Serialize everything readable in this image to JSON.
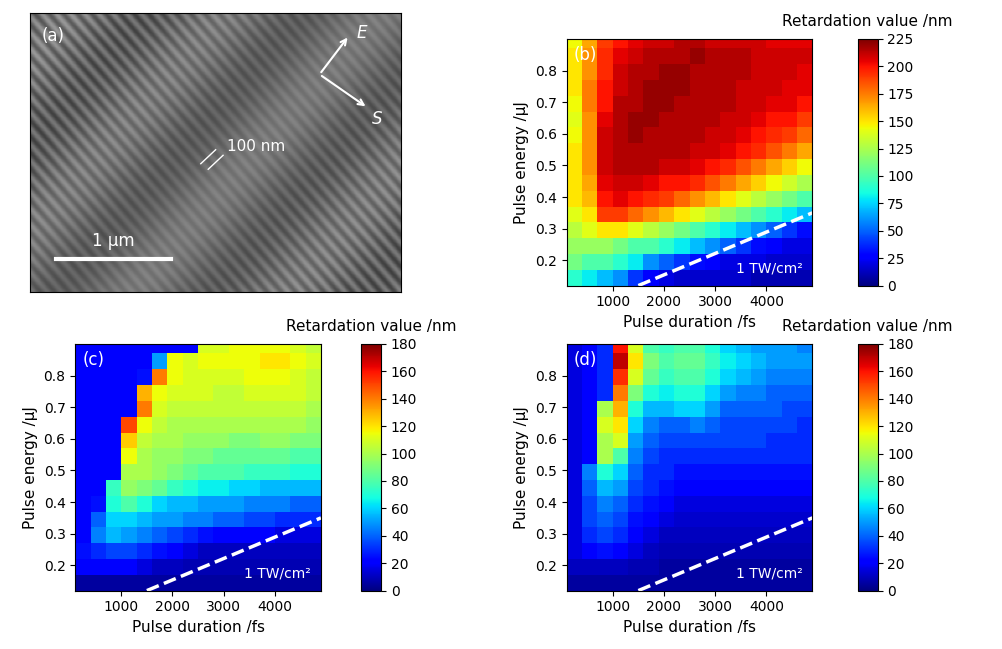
{
  "panel_a": {
    "label": "(a)",
    "polarization_label": "E",
    "scan_label": "S",
    "period_label": "100 nm",
    "scale_bar_label": "1 μm"
  },
  "chart_data": [
    {
      "type": "heatmap",
      "label": "(b)",
      "x_label": "Pulse duration /fs",
      "y_label": "Pulse energy /μJ",
      "xlim": [
        100,
        4900
      ],
      "ylim": [
        0.12,
        0.9
      ],
      "xticks": [
        1000,
        2000,
        3000,
        4000
      ],
      "yticks": [
        0.2,
        0.3,
        0.4,
        0.5,
        0.6,
        0.7,
        0.8
      ],
      "x_edges": [
        100,
        400,
        700,
        1000,
        1300,
        1600,
        1900,
        2200,
        2500,
        2800,
        3100,
        3400,
        3700,
        4000,
        4300,
        4600,
        4900
      ],
      "y_edges": [
        0.12,
        0.17,
        0.22,
        0.27,
        0.32,
        0.37,
        0.42,
        0.47,
        0.52,
        0.57,
        0.62,
        0.67,
        0.72,
        0.77,
        0.82,
        0.87,
        0.92
      ],
      "cells": [
        [
          90,
          80,
          70,
          60,
          40,
          25,
          20,
          15,
          15,
          15,
          15,
          15,
          10,
          10,
          10,
          10
        ],
        [
          110,
          100,
          100,
          90,
          80,
          60,
          50,
          40,
          30,
          25,
          20,
          20,
          20,
          15,
          15,
          15
        ],
        [
          120,
          120,
          120,
          110,
          100,
          100,
          90,
          80,
          70,
          60,
          50,
          40,
          30,
          25,
          20,
          20
        ],
        [
          130,
          140,
          150,
          150,
          140,
          130,
          120,
          110,
          100,
          90,
          80,
          70,
          60,
          50,
          40,
          30
        ],
        [
          140,
          150,
          190,
          190,
          180,
          170,
          160,
          150,
          140,
          130,
          120,
          110,
          100,
          90,
          80,
          70
        ],
        [
          150,
          160,
          200,
          205,
          200,
          195,
          190,
          180,
          170,
          160,
          150,
          140,
          130,
          120,
          110,
          100
        ],
        [
          150,
          165,
          205,
          210,
          210,
          205,
          200,
          200,
          195,
          185,
          175,
          165,
          155,
          145,
          135,
          125
        ],
        [
          150,
          170,
          210,
          215,
          215,
          215,
          210,
          210,
          205,
          200,
          195,
          185,
          175,
          165,
          155,
          145
        ],
        [
          150,
          170,
          210,
          215,
          215,
          215,
          215,
          215,
          210,
          210,
          205,
          200,
          195,
          185,
          175,
          165
        ],
        [
          145,
          170,
          210,
          215,
          220,
          215,
          215,
          215,
          215,
          210,
          210,
          205,
          200,
          195,
          190,
          180
        ],
        [
          140,
          170,
          205,
          215,
          220,
          220,
          215,
          215,
          215,
          215,
          210,
          210,
          205,
          200,
          200,
          190
        ],
        [
          145,
          175,
          200,
          215,
          215,
          220,
          220,
          215,
          215,
          215,
          215,
          210,
          210,
          205,
          205,
          200
        ],
        [
          150,
          175,
          200,
          210,
          215,
          220,
          220,
          220,
          215,
          215,
          215,
          210,
          210,
          210,
          205,
          205
        ],
        [
          150,
          170,
          195,
          210,
          215,
          215,
          220,
          220,
          215,
          215,
          215,
          215,
          210,
          210,
          210,
          205
        ],
        [
          150,
          170,
          195,
          205,
          210,
          215,
          215,
          215,
          220,
          215,
          215,
          215,
          210,
          210,
          210,
          210
        ],
        [
          145,
          165,
          190,
          200,
          205,
          210,
          210,
          215,
          215,
          210,
          210,
          210,
          210,
          205,
          205,
          205
        ]
      ],
      "colorbar": {
        "title": "Retardation value /nm",
        "range": [
          0,
          225
        ],
        "ticks": [
          0,
          25,
          50,
          75,
          100,
          125,
          150,
          175,
          200,
          225
        ]
      },
      "threshold_line": {
        "x": [
          1500,
          4900
        ],
        "y": [
          0.12,
          0.35
        ],
        "label": "1 TW/cm²"
      }
    },
    {
      "type": "heatmap",
      "label": "(c)",
      "x_label": "Pulse duration /fs",
      "y_label": "Pulse energy /μJ",
      "xlim": [
        100,
        4900
      ],
      "ylim": [
        0.12,
        0.9
      ],
      "xticks": [
        1000,
        2000,
        3000,
        4000
      ],
      "yticks": [
        0.2,
        0.3,
        0.4,
        0.5,
        0.6,
        0.7,
        0.8
      ],
      "x_edges": [
        100,
        400,
        700,
        1000,
        1300,
        1600,
        1900,
        2200,
        2500,
        2800,
        3100,
        3400,
        3700,
        4000,
        4300,
        4600,
        4900
      ],
      "y_edges": [
        0.12,
        0.17,
        0.22,
        0.27,
        0.32,
        0.37,
        0.42,
        0.47,
        0.52,
        0.57,
        0.62,
        0.67,
        0.72,
        0.77,
        0.82,
        0.87,
        0.92
      ],
      "cells": [
        [
          5,
          5,
          5,
          5,
          5,
          5,
          5,
          5,
          5,
          5,
          5,
          5,
          5,
          5,
          5,
          5
        ],
        [
          20,
          20,
          20,
          20,
          15,
          10,
          10,
          8,
          8,
          8,
          8,
          8,
          8,
          8,
          8,
          8
        ],
        [
          25,
          30,
          35,
          35,
          30,
          25,
          20,
          15,
          10,
          10,
          10,
          10,
          10,
          10,
          10,
          10
        ],
        [
          20,
          45,
          55,
          50,
          45,
          40,
          35,
          30,
          25,
          20,
          20,
          20,
          20,
          15,
          15,
          15
        ],
        [
          20,
          40,
          60,
          60,
          55,
          50,
          50,
          45,
          45,
          40,
          40,
          35,
          35,
          30,
          30,
          30
        ],
        [
          20,
          25,
          70,
          80,
          70,
          60,
          55,
          55,
          50,
          50,
          50,
          45,
          45,
          45,
          40,
          40
        ],
        [
          20,
          20,
          75,
          95,
          90,
          85,
          75,
          70,
          65,
          65,
          60,
          60,
          55,
          55,
          55,
          55
        ],
        [
          20,
          20,
          20,
          100,
          100,
          95,
          90,
          85,
          80,
          80,
          80,
          75,
          75,
          75,
          70,
          70
        ],
        [
          20,
          20,
          20,
          115,
          100,
          95,
          95,
          90,
          90,
          85,
          85,
          85,
          85,
          85,
          80,
          80
        ],
        [
          20,
          20,
          20,
          125,
          105,
          100,
          100,
          95,
          95,
          95,
          90,
          90,
          95,
          95,
          90,
          90
        ],
        [
          20,
          20,
          20,
          150,
          115,
          105,
          100,
          100,
          100,
          100,
          100,
          100,
          100,
          100,
          100,
          95
        ],
        [
          20,
          20,
          20,
          20,
          140,
          110,
          105,
          105,
          105,
          105,
          105,
          105,
          105,
          105,
          105,
          100
        ],
        [
          20,
          20,
          20,
          20,
          130,
          115,
          110,
          110,
          110,
          105,
          105,
          110,
          110,
          110,
          110,
          105
        ],
        [
          20,
          20,
          20,
          20,
          25,
          140,
          115,
          110,
          110,
          110,
          110,
          115,
          115,
          115,
          110,
          105
        ],
        [
          20,
          20,
          20,
          20,
          20,
          50,
          115,
          110,
          115,
          115,
          115,
          115,
          120,
          120,
          115,
          110
        ],
        [
          20,
          20,
          20,
          20,
          20,
          20,
          20,
          20,
          110,
          110,
          115,
          115,
          115,
          115,
          110,
          105
        ]
      ],
      "colorbar": {
        "title": "Retardation value /nm",
        "range": [
          0,
          180
        ],
        "ticks": [
          0,
          20,
          40,
          60,
          80,
          100,
          120,
          140,
          160,
          180
        ]
      },
      "threshold_line": {
        "x": [
          1500,
          4900
        ],
        "y": [
          0.12,
          0.35
        ],
        "label": "1 TW/cm²"
      }
    },
    {
      "type": "heatmap",
      "label": "(d)",
      "x_label": "Pulse duration /fs",
      "y_label": "Pulse energy /μJ",
      "xlim": [
        100,
        4900
      ],
      "ylim": [
        0.12,
        0.9
      ],
      "xticks": [
        1000,
        2000,
        3000,
        4000
      ],
      "yticks": [
        0.2,
        0.3,
        0.4,
        0.5,
        0.6,
        0.7,
        0.8
      ],
      "x_edges": [
        100,
        400,
        700,
        1000,
        1300,
        1600,
        1900,
        2200,
        2500,
        2800,
        3100,
        3400,
        3700,
        4000,
        4300,
        4600,
        4900
      ],
      "y_edges": [
        0.12,
        0.17,
        0.22,
        0.27,
        0.32,
        0.37,
        0.42,
        0.47,
        0.52,
        0.57,
        0.62,
        0.67,
        0.72,
        0.77,
        0.82,
        0.87,
        0.92
      ],
      "cells": [
        [
          5,
          5,
          5,
          5,
          5,
          5,
          5,
          5,
          5,
          5,
          5,
          5,
          5,
          5,
          5,
          5
        ],
        [
          10,
          10,
          10,
          10,
          8,
          8,
          5,
          5,
          5,
          5,
          5,
          5,
          5,
          5,
          5,
          5
        ],
        [
          15,
          20,
          25,
          20,
          15,
          10,
          8,
          8,
          8,
          8,
          8,
          8,
          8,
          8,
          8,
          8
        ],
        [
          15,
          30,
          35,
          30,
          20,
          15,
          10,
          10,
          10,
          10,
          10,
          10,
          10,
          10,
          10,
          10
        ],
        [
          15,
          35,
          40,
          35,
          25,
          20,
          15,
          12,
          12,
          12,
          12,
          12,
          12,
          12,
          12,
          12
        ],
        [
          15,
          35,
          45,
          40,
          30,
          25,
          20,
          15,
          15,
          15,
          15,
          15,
          15,
          15,
          15,
          15
        ],
        [
          15,
          40,
          55,
          50,
          35,
          30,
          25,
          20,
          20,
          20,
          20,
          20,
          20,
          20,
          20,
          20
        ],
        [
          15,
          45,
          70,
          60,
          40,
          30,
          30,
          25,
          25,
          25,
          25,
          25,
          25,
          25,
          25,
          25
        ],
        [
          15,
          20,
          100,
          80,
          45,
          35,
          30,
          30,
          30,
          30,
          30,
          30,
          30,
          30,
          30,
          30
        ],
        [
          15,
          20,
          100,
          110,
          50,
          40,
          35,
          35,
          35,
          35,
          35,
          35,
          35,
          30,
          30,
          30
        ],
        [
          15,
          20,
          110,
          120,
          60,
          45,
          40,
          40,
          45,
          40,
          35,
          35,
          35,
          35,
          35,
          30
        ],
        [
          15,
          20,
          100,
          130,
          70,
          55,
          55,
          60,
          60,
          50,
          40,
          40,
          40,
          40,
          35,
          35
        ],
        [
          15,
          20,
          30,
          140,
          90,
          70,
          65,
          70,
          70,
          60,
          50,
          45,
          45,
          40,
          40,
          40
        ],
        [
          15,
          20,
          30,
          155,
          110,
          85,
          75,
          80,
          80,
          70,
          60,
          55,
          50,
          45,
          45,
          45
        ],
        [
          15,
          20,
          30,
          170,
          120,
          90,
          80,
          85,
          85,
          75,
          65,
          60,
          55,
          50,
          50,
          50
        ],
        [
          15,
          20,
          30,
          160,
          110,
          80,
          75,
          80,
          80,
          70,
          60,
          55,
          50,
          50,
          50,
          45
        ]
      ],
      "colorbar": {
        "title": "Retardation value /nm",
        "range": [
          0,
          180
        ],
        "ticks": [
          0,
          20,
          40,
          60,
          80,
          100,
          120,
          140,
          160,
          180
        ]
      },
      "threshold_line": {
        "x": [
          1500,
          4900
        ],
        "y": [
          0.12,
          0.35
        ],
        "label": "1 TW/cm²"
      }
    }
  ]
}
